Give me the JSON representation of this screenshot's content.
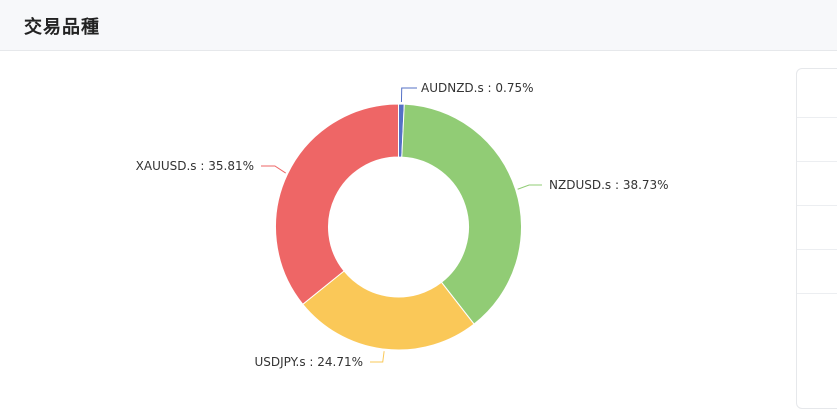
{
  "header": {
    "title": "交易品種"
  },
  "chart_data": {
    "type": "pie",
    "variant": "donut",
    "title": "交易品種",
    "series": [
      {
        "name": "AUDNZD.s",
        "value": 0.75,
        "label": "AUDNZD.s : 0.75%",
        "color": "#5470c6"
      },
      {
        "name": "NZDUSD.s",
        "value": 38.73,
        "label": "NZDUSD.s : 38.73%",
        "color": "#91cc75"
      },
      {
        "name": "USDJPY.s",
        "value": 24.71,
        "label": "USDJPY.s : 24.71%",
        "color": "#fac858"
      },
      {
        "name": "XAUUSD.s",
        "value": 35.81,
        "label": "XAUUSD.s : 35.81%",
        "color": "#ee6666"
      }
    ]
  }
}
